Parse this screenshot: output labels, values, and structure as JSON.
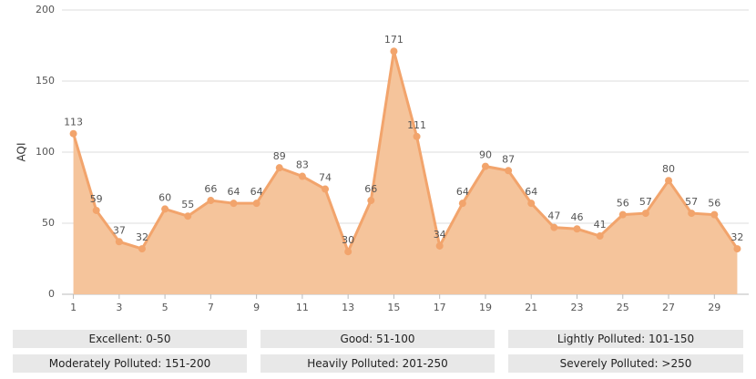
{
  "chart_data": {
    "type": "area",
    "y_label": "AQI",
    "x": [
      1,
      2,
      3,
      4,
      5,
      6,
      7,
      8,
      9,
      10,
      11,
      12,
      13,
      14,
      15,
      16,
      17,
      18,
      19,
      20,
      21,
      22,
      23,
      24,
      25,
      26,
      27,
      28,
      29,
      30
    ],
    "values": [
      113,
      59,
      37,
      32,
      60,
      55,
      66,
      64,
      64,
      89,
      83,
      74,
      30,
      66,
      171,
      111,
      34,
      64,
      90,
      87,
      64,
      47,
      46,
      41,
      56,
      57,
      80,
      57,
      56,
      32
    ],
    "color": "#f2a46c",
    "area_color": "#f5c49b",
    "xlim": [
      0.5,
      30.5
    ],
    "xticks": [
      1,
      3,
      5,
      7,
      9,
      11,
      13,
      15,
      17,
      19,
      21,
      23,
      25,
      27,
      29
    ],
    "ylim": [
      0,
      200
    ],
    "yticks": [
      0,
      50,
      100,
      150,
      200
    ],
    "grid": true
  },
  "levels": [
    "Excellent: 0-50",
    "Good: 51-100",
    "Lightly Polluted: 101-150",
    "Moderately Polluted: 151-200",
    "Heavily Polluted: 201-250",
    "Severely Polluted: >250"
  ]
}
